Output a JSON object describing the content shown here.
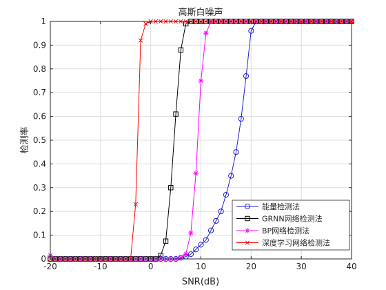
{
  "chart_data": {
    "type": "line",
    "title": "高斯白噪声",
    "xlabel": "SNR(dB)",
    "ylabel": "检测率",
    "xlim": [
      -20,
      40
    ],
    "ylim": [
      0,
      1
    ],
    "x_ticks": [
      -20,
      -10,
      0,
      10,
      20,
      30,
      40
    ],
    "y_ticks": [
      0,
      0.1,
      0.2,
      0.3,
      0.4,
      0.5,
      0.6,
      0.7,
      0.8,
      0.9,
      1
    ],
    "x_tick_labels": [
      "-20",
      "-10",
      "0",
      "10",
      "20",
      "30",
      "40"
    ],
    "y_tick_labels": [
      "0",
      "0.1",
      "0.2",
      "0.3",
      "0.4",
      "0.5",
      "0.6",
      "0.7",
      "0.8",
      "0.9",
      "1"
    ],
    "grid": true,
    "legend_position": "bottom-right",
    "series": [
      {
        "name": "能量检测法",
        "color": "#1f1fd0",
        "marker": "circle",
        "x": [
          -20,
          -19,
          -18,
          -17,
          -16,
          -15,
          -14,
          -13,
          -12,
          -11,
          -10,
          -9,
          -8,
          -7,
          -6,
          -5,
          -4,
          -3,
          -2,
          -1,
          0,
          1,
          2,
          3,
          4,
          5,
          6,
          7,
          8,
          9,
          10,
          11,
          12,
          13,
          14,
          15,
          16,
          17,
          18,
          19,
          20,
          21,
          22,
          23,
          24,
          25,
          26,
          27,
          28,
          29,
          30,
          31,
          32,
          33,
          34,
          35,
          36,
          37,
          38,
          39,
          40
        ],
        "y": [
          0,
          0,
          0,
          0,
          0,
          0,
          0,
          0,
          0,
          0,
          0,
          0,
          0,
          0,
          0,
          0,
          0,
          0,
          0,
          0,
          0,
          0,
          0,
          0,
          0,
          0,
          0.005,
          0.01,
          0.02,
          0.04,
          0.06,
          0.08,
          0.12,
          0.16,
          0.2,
          0.27,
          0.35,
          0.45,
          0.59,
          0.77,
          0.96,
          1,
          1,
          1,
          1,
          1,
          1,
          1,
          1,
          1,
          1,
          1,
          1,
          1,
          1,
          1,
          1,
          1,
          1,
          1,
          1
        ]
      },
      {
        "name": "GRNN网络检测法",
        "color": "#000000",
        "marker": "square",
        "x": [
          -20,
          -19,
          -18,
          -17,
          -16,
          -15,
          -14,
          -13,
          -12,
          -11,
          -10,
          -9,
          -8,
          -7,
          -6,
          -5,
          -4,
          -3,
          -2,
          -1,
          0,
          1,
          2,
          3,
          4,
          5,
          6,
          7,
          8,
          9,
          10,
          11,
          12,
          13,
          14,
          15,
          16,
          17,
          18,
          19,
          20,
          21,
          22,
          23,
          24,
          25,
          26,
          27,
          28,
          29,
          30,
          31,
          32,
          33,
          34,
          35,
          36,
          37,
          38,
          39,
          40
        ],
        "y": [
          0,
          0,
          0,
          0,
          0,
          0,
          0,
          0,
          0,
          0,
          0,
          0,
          0,
          0,
          0,
          0,
          0,
          0,
          0,
          0,
          0,
          0,
          0.015,
          0.075,
          0.3,
          0.61,
          0.88,
          0.99,
          1,
          1,
          1,
          1,
          1,
          1,
          1,
          1,
          1,
          1,
          1,
          1,
          1,
          1,
          1,
          1,
          1,
          1,
          1,
          1,
          1,
          1,
          1,
          1,
          1,
          1,
          1,
          1,
          1,
          1,
          1,
          1,
          1
        ]
      },
      {
        "name": "BP网络检测法",
        "color": "#ff00ff",
        "marker": "asterisk",
        "x": [
          -20,
          -19,
          -18,
          -17,
          -16,
          -15,
          -14,
          -13,
          -12,
          -11,
          -10,
          -9,
          -8,
          -7,
          -6,
          -5,
          -4,
          -3,
          -2,
          -1,
          0,
          1,
          2,
          3,
          4,
          5,
          6,
          7,
          8,
          9,
          10,
          11,
          12,
          13,
          14,
          15,
          16,
          17,
          18,
          19,
          20,
          21,
          22,
          23,
          24,
          25,
          26,
          27,
          28,
          29,
          30,
          31,
          32,
          33,
          34,
          35,
          36,
          37,
          38,
          39,
          40
        ],
        "y": [
          0.015,
          0,
          0,
          0,
          0,
          0,
          0,
          0,
          0,
          0,
          0,
          0,
          0,
          0,
          0,
          0,
          0,
          0,
          0,
          0,
          0,
          0,
          0,
          0,
          0,
          0,
          0.005,
          0.02,
          0.11,
          0.36,
          0.75,
          0.95,
          1,
          1,
          1,
          1,
          1,
          1,
          1,
          1,
          1,
          1,
          1,
          1,
          1,
          1,
          1,
          1,
          1,
          1,
          1,
          1,
          1,
          1,
          1,
          1,
          1,
          1,
          1,
          1,
          1
        ]
      },
      {
        "name": "深度学习网络检测法",
        "color": "#ff0000",
        "marker": "x",
        "x": [
          -20,
          -19,
          -18,
          -17,
          -16,
          -15,
          -14,
          -13,
          -12,
          -11,
          -10,
          -9,
          -8,
          -7,
          -6,
          -5,
          -4,
          -3,
          -2,
          -1,
          0,
          1,
          2,
          3,
          4,
          5,
          6,
          7,
          8,
          9,
          10,
          11,
          12,
          13,
          14,
          15,
          16,
          17,
          18,
          19,
          20,
          21,
          22,
          23,
          24,
          25,
          26,
          27,
          28,
          29,
          30,
          31,
          32,
          33,
          34,
          35,
          36,
          37,
          38,
          39,
          40
        ],
        "y": [
          0,
          0,
          0,
          0,
          0,
          0,
          0,
          0,
          0,
          0,
          0,
          0,
          0,
          0,
          0,
          0,
          0,
          0.23,
          0.92,
          0.99,
          1,
          1,
          1,
          1,
          1,
          1,
          1,
          1,
          1,
          1,
          1,
          1,
          1,
          1,
          1,
          1,
          1,
          1,
          1,
          1,
          1,
          1,
          1,
          1,
          1,
          1,
          1,
          1,
          1,
          1,
          1,
          1,
          1,
          1,
          1,
          1,
          1,
          1,
          1,
          1,
          1
        ]
      }
    ]
  }
}
